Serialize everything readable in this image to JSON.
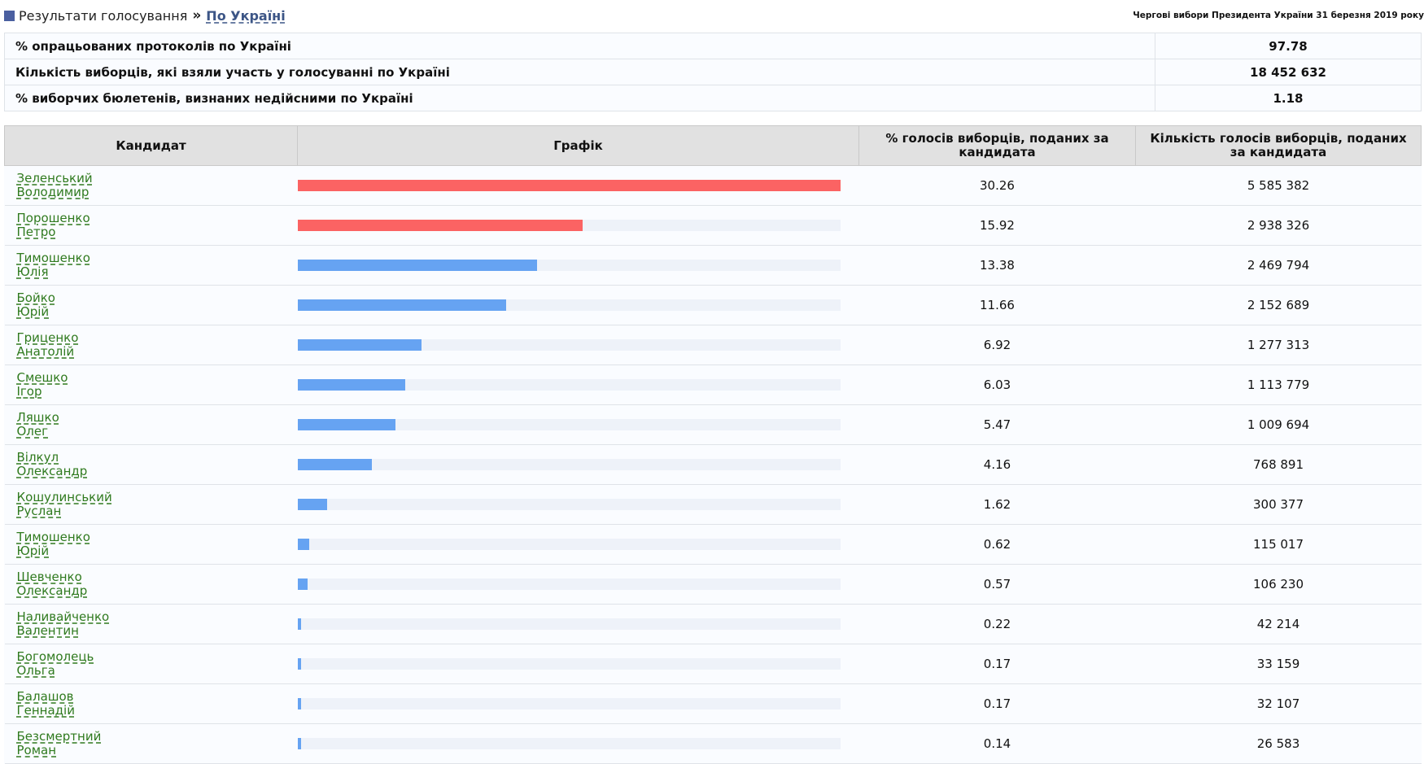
{
  "header": {
    "breadcrumb_root": "Результати голосування",
    "breadcrumb_sep": "»",
    "breadcrumb_current": "По Україні",
    "election_title": "Чергові вибори Президента України 31 березня 2019 року"
  },
  "summary": [
    {
      "label": "% опрацьованих протоколів по Україні",
      "value": "97.78"
    },
    {
      "label": "Кількість виборців, які взяли участь у голосуванні по Україні",
      "value": "18 452 632"
    },
    {
      "label": "% виборчих бюлетенів, визнаних недійсними по Україні",
      "value": "1.18"
    }
  ],
  "columns": {
    "candidate": "Кандидат",
    "chart": "Графік",
    "percent": "% голосів виборців, поданих за кандидата",
    "count": "Кількість голосів виборців, поданих за кандидата"
  },
  "colors": {
    "top_two": "#fb6363",
    "others": "#66a3f2",
    "track": "#eef2f9"
  },
  "candidates": [
    {
      "surname": "Зеленський",
      "name": "Володимир",
      "percent": "30.26",
      "votes": "5 585 382",
      "bar_fraction": 1.0
    },
    {
      "surname": "Порошенко",
      "name": "Петро",
      "percent": "15.92",
      "votes": "2 938 326",
      "bar_fraction": 0.526
    },
    {
      "surname": "Тимошенко",
      "name": "Юлія",
      "percent": "13.38",
      "votes": "2 469 794",
      "bar_fraction": 0.442
    },
    {
      "surname": "Бойко",
      "name": "Юрій",
      "percent": "11.66",
      "votes": "2 152 689",
      "bar_fraction": 0.385
    },
    {
      "surname": "Гриценко",
      "name": "Анатолій",
      "percent": "6.92",
      "votes": "1 277 313",
      "bar_fraction": 0.229
    },
    {
      "surname": "Смешко",
      "name": "Ігор",
      "percent": "6.03",
      "votes": "1 113 779",
      "bar_fraction": 0.199
    },
    {
      "surname": "Ляшко",
      "name": "Олег",
      "percent": "5.47",
      "votes": "1 009 694",
      "bar_fraction": 0.181
    },
    {
      "surname": "Вілкул",
      "name": "Олександр",
      "percent": "4.16",
      "votes": "768 891",
      "bar_fraction": 0.137
    },
    {
      "surname": "Кошулинський",
      "name": "Руслан",
      "percent": "1.62",
      "votes": "300 377",
      "bar_fraction": 0.054
    },
    {
      "surname": "Тимошенко",
      "name": "Юрій",
      "percent": "0.62",
      "votes": "115 017",
      "bar_fraction": 0.021
    },
    {
      "surname": "Шевченко",
      "name": "Олександр",
      "percent": "0.57",
      "votes": "106 230",
      "bar_fraction": 0.019
    },
    {
      "surname": "Наливайченко",
      "name": "Валентин",
      "percent": "0.22",
      "votes": "42 214",
      "bar_fraction": 0.007
    },
    {
      "surname": "Богомолець",
      "name": "Ольга",
      "percent": "0.17",
      "votes": "33 159",
      "bar_fraction": 0.006
    },
    {
      "surname": "Балашов",
      "name": "Геннадій",
      "percent": "0.17",
      "votes": "32 107",
      "bar_fraction": 0.006
    },
    {
      "surname": "Безсмертний",
      "name": "Роман",
      "percent": "0.14",
      "votes": "26 583",
      "bar_fraction": 0.005
    }
  ]
}
